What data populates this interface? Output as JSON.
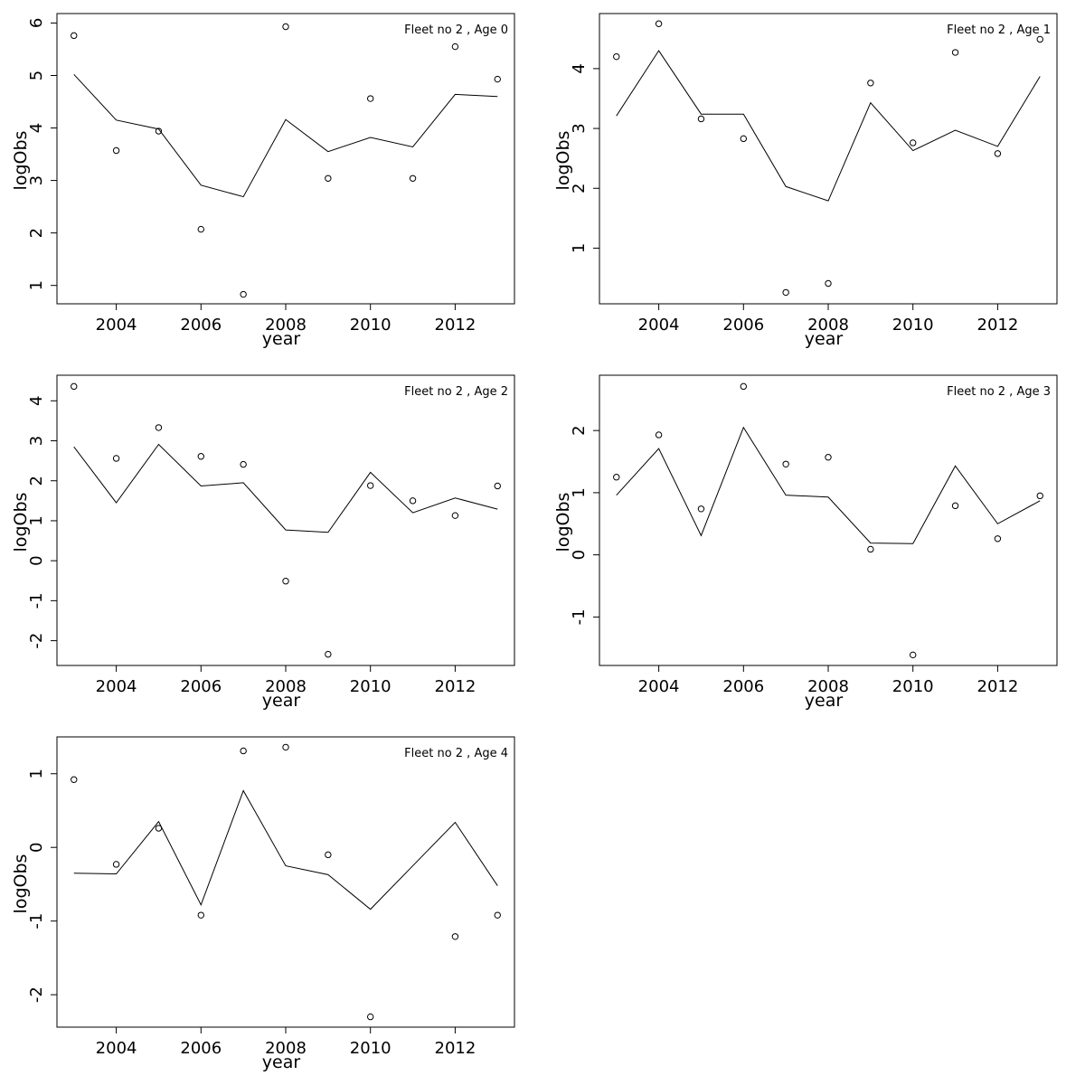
{
  "chart_data": [
    {
      "type": "line",
      "title": "Fleet no 2 , Age 0",
      "xlabel": "year",
      "ylabel": "logObs",
      "xlim": [
        2002.6,
        2013.4
      ],
      "ylim": [
        0.65,
        6.18
      ],
      "xticks": [
        2004,
        2006,
        2008,
        2010,
        2012
      ],
      "yticks": [
        1,
        2,
        3,
        4,
        5,
        6
      ],
      "grid": false,
      "x": [
        2003,
        2004,
        2005,
        2006,
        2007,
        2008,
        2009,
        2010,
        2011,
        2012,
        2013
      ],
      "series": [
        {
          "kind": "points",
          "values": [
            5.76,
            3.57,
            3.94,
            2.07,
            0.83,
            5.93,
            3.04,
            4.56,
            3.04,
            5.55,
            4.93
          ]
        },
        {
          "kind": "line",
          "values": [
            5.02,
            4.15,
            3.98,
            2.91,
            2.69,
            4.16,
            3.55,
            3.82,
            3.64,
            4.64,
            4.6
          ]
        }
      ]
    },
    {
      "type": "line",
      "title": "Fleet no 2 , Age 1",
      "xlabel": "year",
      "ylabel": "logObs",
      "xlim": [
        2002.6,
        2013.4
      ],
      "ylim": [
        0.07,
        4.92
      ],
      "xticks": [
        2004,
        2006,
        2008,
        2010,
        2012
      ],
      "yticks": [
        1,
        2,
        3,
        4
      ],
      "grid": false,
      "x": [
        2003,
        2004,
        2005,
        2006,
        2007,
        2008,
        2009,
        2010,
        2011,
        2012,
        2013
      ],
      "series": [
        {
          "kind": "points",
          "values": [
            4.2,
            4.75,
            3.16,
            2.83,
            0.26,
            0.41,
            3.76,
            2.76,
            4.27,
            2.58,
            4.49
          ]
        },
        {
          "kind": "line",
          "values": [
            3.21,
            4.3,
            3.24,
            3.24,
            2.03,
            1.79,
            3.43,
            2.63,
            2.97,
            2.7,
            3.87
          ]
        }
      ]
    },
    {
      "type": "line",
      "title": "Fleet no 2 , Age 2",
      "xlabel": "year",
      "ylabel": "logObs",
      "xlim": [
        2002.6,
        2013.4
      ],
      "ylim": [
        -2.62,
        4.64
      ],
      "xticks": [
        2004,
        2006,
        2008,
        2010,
        2012
      ],
      "yticks": [
        -2,
        -1,
        0,
        1,
        2,
        3,
        4
      ],
      "grid": false,
      "x": [
        2003,
        2004,
        2005,
        2006,
        2007,
        2008,
        2009,
        2010,
        2011,
        2012,
        2013
      ],
      "series": [
        {
          "kind": "points",
          "values": [
            4.36,
            2.56,
            3.33,
            2.61,
            2.41,
            -0.51,
            -2.34,
            1.88,
            1.5,
            1.13,
            1.87
          ]
        },
        {
          "kind": "line",
          "values": [
            2.85,
            1.45,
            2.91,
            1.87,
            1.95,
            0.77,
            0.71,
            2.21,
            1.2,
            1.57,
            1.29
          ]
        }
      ]
    },
    {
      "type": "line",
      "title": "Fleet no 2 , Age 3",
      "xlabel": "year",
      "ylabel": "logObs",
      "xlim": [
        2002.6,
        2013.4
      ],
      "ylim": [
        -1.78,
        2.89
      ],
      "xticks": [
        2004,
        2006,
        2008,
        2010,
        2012
      ],
      "yticks": [
        -1,
        0,
        1,
        2
      ],
      "grid": false,
      "x": [
        2003,
        2004,
        2005,
        2006,
        2007,
        2008,
        2009,
        2010,
        2011,
        2012,
        2013
      ],
      "series": [
        {
          "kind": "points",
          "values": [
            1.25,
            1.93,
            0.74,
            2.71,
            1.46,
            1.57,
            0.09,
            -1.61,
            0.79,
            0.26,
            0.95
          ]
        },
        {
          "kind": "line",
          "values": [
            0.96,
            1.71,
            0.31,
            2.05,
            0.96,
            0.93,
            0.19,
            0.18,
            1.43,
            0.5,
            0.87
          ]
        }
      ]
    },
    {
      "type": "line",
      "title": "Fleet no 2 , Age 4",
      "xlabel": "year",
      "ylabel": "logObs",
      "xlim": [
        2002.6,
        2013.4
      ],
      "ylim": [
        -2.44,
        1.5
      ],
      "xticks": [
        2004,
        2006,
        2008,
        2010,
        2012
      ],
      "yticks": [
        -2,
        -1,
        0,
        1
      ],
      "grid": false,
      "x": [
        2003,
        2004,
        2005,
        2006,
        2007,
        2008,
        2009,
        2010,
        2011,
        2012,
        2013
      ],
      "series": [
        {
          "kind": "points",
          "values": [
            0.92,
            -0.23,
            0.26,
            -0.92,
            1.31,
            1.36,
            -0.1,
            -2.3,
            null,
            -1.21,
            -0.92
          ]
        },
        {
          "kind": "line",
          "values": [
            -0.35,
            -0.36,
            0.35,
            -0.78,
            0.77,
            -0.25,
            -0.37,
            -0.84,
            -0.25,
            0.34,
            -0.52
          ]
        }
      ]
    }
  ]
}
